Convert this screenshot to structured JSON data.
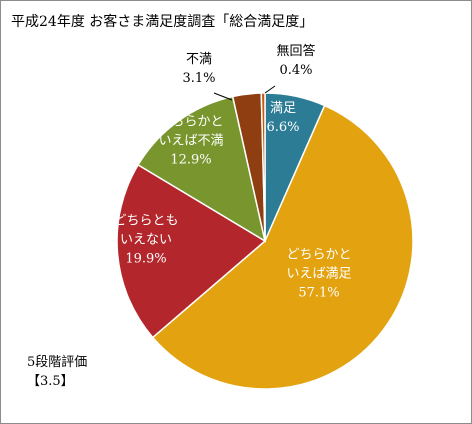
{
  "chart_data": {
    "type": "pie",
    "title": "平成24年度 お客さま満足度調査「総合満足度」",
    "slices": [
      {
        "label_lines": [
          "満足"
        ],
        "value": 6.6,
        "value_text": "6.6%",
        "color": "#2d7c95"
      },
      {
        "label_lines": [
          "どちらかと",
          "いえば満足"
        ],
        "value": 57.1,
        "value_text": "57.1%",
        "color": "#e3a20f"
      },
      {
        "label_lines": [
          "どちらとも",
          "いえない"
        ],
        "value": 19.9,
        "value_text": "19.9%",
        "color": "#b3272c"
      },
      {
        "label_lines": [
          "どちらかと",
          "いえば不満"
        ],
        "value": 12.9,
        "value_text": "12.9%",
        "color": "#78962d"
      },
      {
        "label_lines": [
          "不満"
        ],
        "value": 3.1,
        "value_text": "3.1%",
        "color": "#8e3e10"
      },
      {
        "label_lines": [
          "無回答"
        ],
        "value": 0.4,
        "value_text": "0.4%",
        "color": "#c45911"
      }
    ]
  },
  "note": {
    "line1": "5段階評価",
    "line2": "【3.5】"
  }
}
